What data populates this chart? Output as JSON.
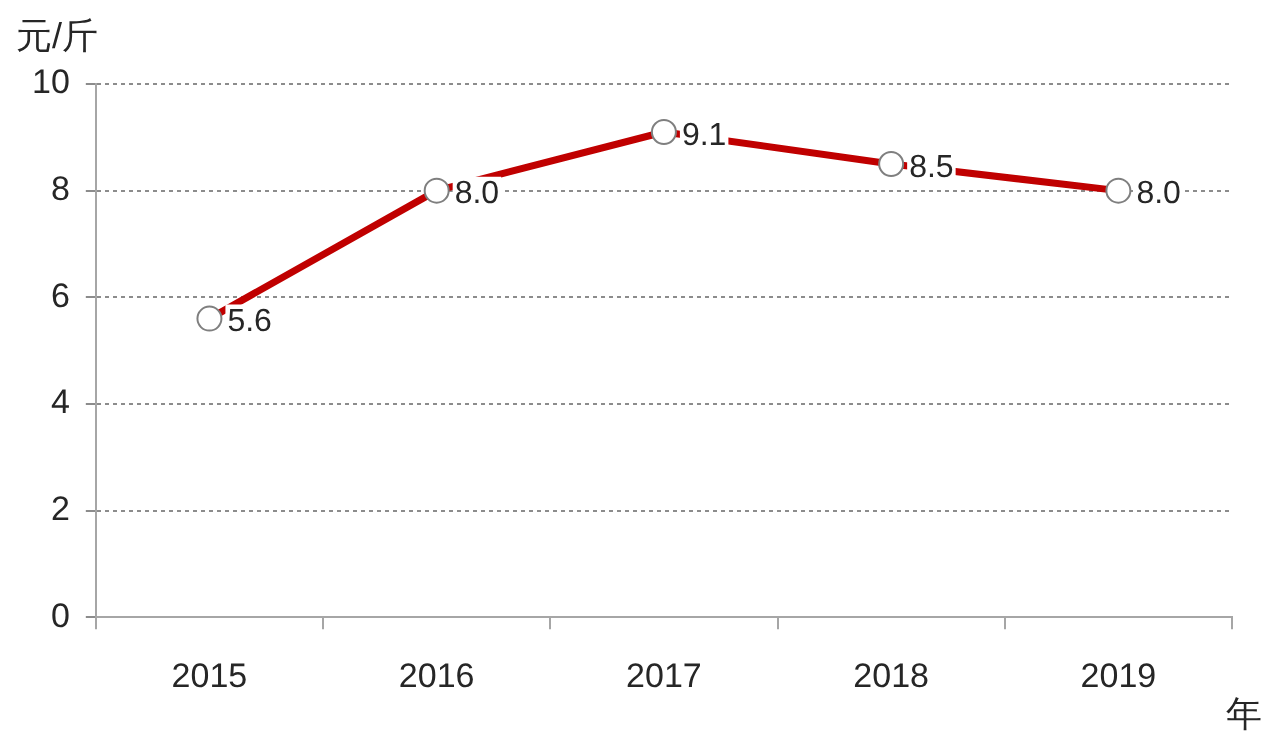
{
  "chart_data": {
    "type": "line",
    "ylabel": "元/斤",
    "xlabel": "年",
    "categories": [
      "2015",
      "2016",
      "2017",
      "2018",
      "2019"
    ],
    "series": [
      {
        "color": "#c00000",
        "values": [
          5.6,
          8.0,
          9.1,
          8.5,
          8.0
        ],
        "value_labels": [
          "5.6",
          "8.0",
          "9.1",
          "8.5",
          "8.0"
        ]
      }
    ],
    "ylim": [
      0,
      10
    ],
    "yticks": [
      0,
      2,
      4,
      6,
      8,
      10
    ],
    "grid": "y",
    "legend": false,
    "marker": "circle",
    "line_style": "solid"
  }
}
